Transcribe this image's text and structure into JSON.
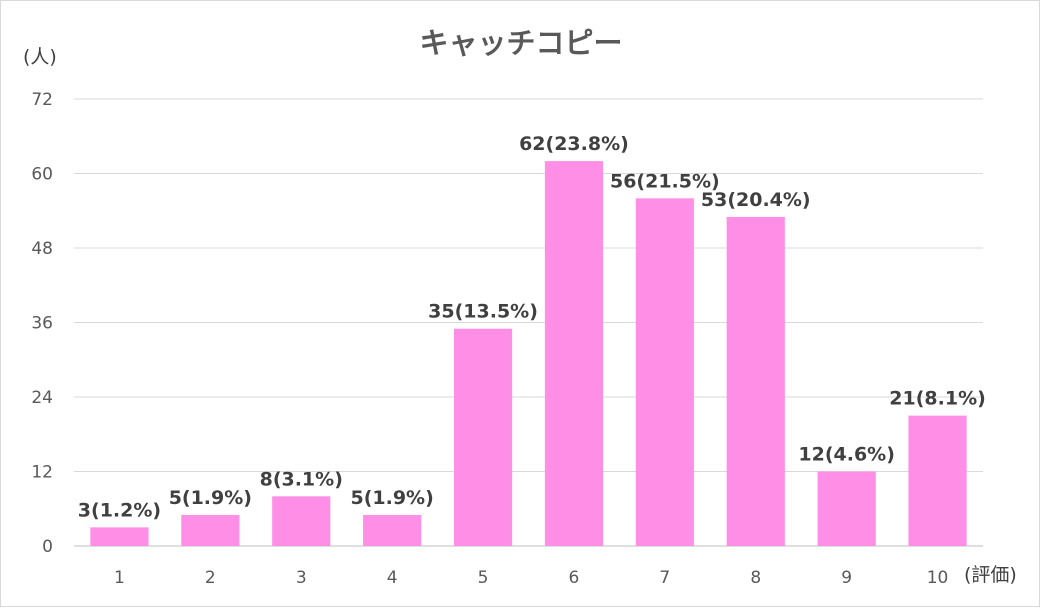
{
  "chart_data": {
    "type": "bar",
    "title": "キャッチコピー",
    "ylabel": "(人)",
    "xlabel": "(評価)",
    "categories": [
      "1",
      "2",
      "3",
      "4",
      "5",
      "6",
      "7",
      "8",
      "9",
      "10"
    ],
    "values": [
      3,
      5,
      8,
      5,
      35,
      62,
      56,
      53,
      12,
      21
    ],
    "data_labels": [
      "3(1.2%)",
      "5(1.9%)",
      "8(3.1%)",
      "5(1.9%)",
      "35(13.5%)",
      "62(23.8%)",
      "56(21.5%)",
      "53(20.4%)",
      "12(4.6%)",
      "21(8.1%)"
    ],
    "ylim": [
      0,
      72
    ],
    "yticks": [
      0,
      12,
      24,
      36,
      48,
      60,
      72
    ],
    "grid": true,
    "legend": "none",
    "bar_color": "#FF8FE6"
  }
}
